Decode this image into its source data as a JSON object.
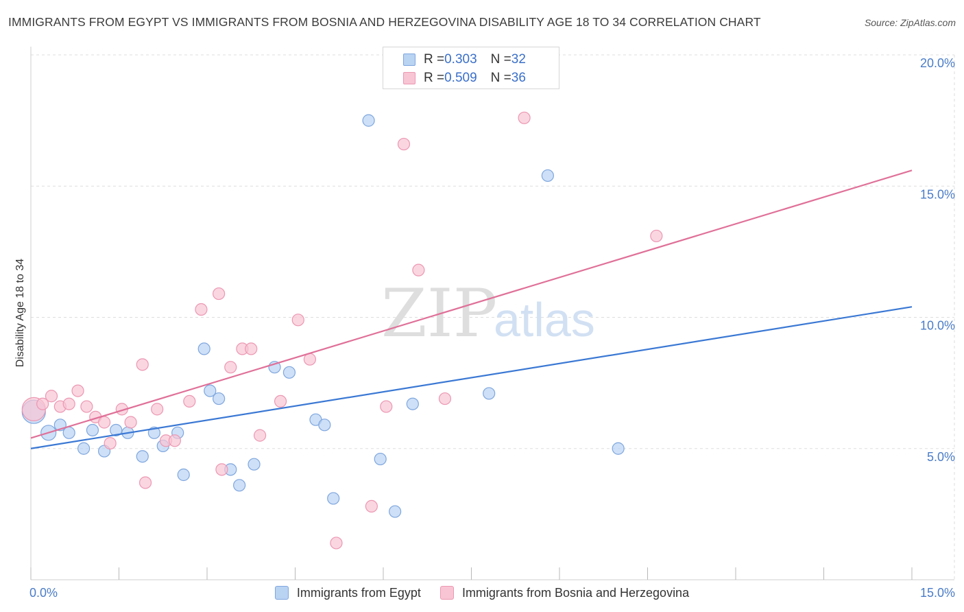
{
  "title": "IMMIGRANTS FROM EGYPT VS IMMIGRANTS FROM BOSNIA AND HERZEGOVINA DISABILITY AGE 18 TO 34 CORRELATION CHART",
  "source": "Source: ZipAtlas.com",
  "watermark": {
    "zip": "ZIP",
    "atlas": "atlas"
  },
  "colors": {
    "egypt_fill": "#b9d3f3",
    "egypt_stroke": "#7ea6de",
    "egypt_line": "#3a78d4",
    "bosnia_fill": "#f8c5d4",
    "bosnia_stroke": "#ec97b2",
    "bosnia_line": "#e07098",
    "tick_text": "#4a7cc7",
    "grid": "#dddddd"
  },
  "legend": {
    "rows": [
      {
        "r_label": "R = ",
        "r_value": "0.303",
        "n_label": "N = ",
        "n_value": "32"
      },
      {
        "r_label": "R = ",
        "r_value": "0.509",
        "n_label": "N = ",
        "n_value": "36"
      }
    ],
    "series_names": [
      "Immigrants from Egypt",
      "Immigrants from Bosnia and Herzegovina"
    ]
  },
  "chart_data": {
    "type": "scatter",
    "title": "IMMIGRANTS FROM EGYPT VS IMMIGRANTS FROM BOSNIA AND HERZEGOVINA DISABILITY AGE 18 TO 34 CORRELATION CHART",
    "xlabel": "",
    "ylabel": "Disability Age 18 to 34",
    "xlim": [
      0,
      15
    ],
    "ylim": [
      0,
      20
    ],
    "x_tick_labels": [
      "0.0%",
      "15.0%"
    ],
    "y_ticks": [
      5,
      10,
      15,
      20
    ],
    "y_tick_labels": [
      "5.0%",
      "10.0%",
      "15.0%",
      "20.0%"
    ],
    "grid": true,
    "legend_position": "top-center",
    "series": [
      {
        "name": "Immigrants from Egypt",
        "r": 0.303,
        "n": 32,
        "trend": {
          "x": [
            0,
            15
          ],
          "y": [
            5.0,
            10.4
          ]
        },
        "points": [
          {
            "x": 0.05,
            "y": 6.4,
            "size": "large"
          },
          {
            "x": 0.3,
            "y": 5.6,
            "size": "medium"
          },
          {
            "x": 0.5,
            "y": 5.9
          },
          {
            "x": 0.65,
            "y": 5.6
          },
          {
            "x": 0.9,
            "y": 5.0
          },
          {
            "x": 1.05,
            "y": 5.7
          },
          {
            "x": 1.25,
            "y": 4.9
          },
          {
            "x": 1.45,
            "y": 5.7
          },
          {
            "x": 1.65,
            "y": 5.6
          },
          {
            "x": 1.9,
            "y": 4.7
          },
          {
            "x": 2.1,
            "y": 5.6
          },
          {
            "x": 2.25,
            "y": 5.1
          },
          {
            "x": 2.5,
            "y": 5.6
          },
          {
            "x": 2.6,
            "y": 4.0
          },
          {
            "x": 2.95,
            "y": 8.8
          },
          {
            "x": 3.05,
            "y": 7.2
          },
          {
            "x": 3.2,
            "y": 6.9
          },
          {
            "x": 3.4,
            "y": 4.2
          },
          {
            "x": 3.55,
            "y": 3.6
          },
          {
            "x": 3.8,
            "y": 4.4
          },
          {
            "x": 4.15,
            "y": 8.1
          },
          {
            "x": 4.4,
            "y": 7.9
          },
          {
            "x": 4.85,
            "y": 6.1
          },
          {
            "x": 5.0,
            "y": 5.9
          },
          {
            "x": 5.15,
            "y": 3.1
          },
          {
            "x": 5.75,
            "y": 17.5
          },
          {
            "x": 5.95,
            "y": 4.6
          },
          {
            "x": 6.2,
            "y": 2.6
          },
          {
            "x": 6.5,
            "y": 6.7
          },
          {
            "x": 7.8,
            "y": 7.1
          },
          {
            "x": 8.8,
            "y": 15.4
          },
          {
            "x": 10.0,
            "y": 5.0
          }
        ]
      },
      {
        "name": "Immigrants from Bosnia and Herzegovina",
        "r": 0.509,
        "n": 36,
        "trend": {
          "x": [
            0,
            15
          ],
          "y": [
            5.4,
            15.6
          ]
        },
        "points": [
          {
            "x": 0.05,
            "y": 6.5,
            "size": "large"
          },
          {
            "x": 0.2,
            "y": 6.7
          },
          {
            "x": 0.35,
            "y": 7.0
          },
          {
            "x": 0.5,
            "y": 6.6
          },
          {
            "x": 0.65,
            "y": 6.7
          },
          {
            "x": 0.8,
            "y": 7.2
          },
          {
            "x": 0.95,
            "y": 6.6
          },
          {
            "x": 1.1,
            "y": 6.2
          },
          {
            "x": 1.25,
            "y": 6.0
          },
          {
            "x": 1.35,
            "y": 5.2
          },
          {
            "x": 1.55,
            "y": 6.5
          },
          {
            "x": 1.7,
            "y": 6.0
          },
          {
            "x": 1.9,
            "y": 8.2
          },
          {
            "x": 1.95,
            "y": 3.7
          },
          {
            "x": 2.15,
            "y": 6.5
          },
          {
            "x": 2.3,
            "y": 5.3
          },
          {
            "x": 2.45,
            "y": 5.3
          },
          {
            "x": 2.7,
            "y": 6.8
          },
          {
            "x": 2.9,
            "y": 10.3
          },
          {
            "x": 3.2,
            "y": 10.9
          },
          {
            "x": 3.25,
            "y": 4.2
          },
          {
            "x": 3.4,
            "y": 8.1
          },
          {
            "x": 3.6,
            "y": 8.8
          },
          {
            "x": 3.75,
            "y": 8.8
          },
          {
            "x": 3.9,
            "y": 5.5
          },
          {
            "x": 4.25,
            "y": 6.8
          },
          {
            "x": 4.55,
            "y": 9.9
          },
          {
            "x": 4.75,
            "y": 8.4
          },
          {
            "x": 5.2,
            "y": 1.4
          },
          {
            "x": 5.8,
            "y": 2.8
          },
          {
            "x": 6.05,
            "y": 6.6
          },
          {
            "x": 6.35,
            "y": 16.6
          },
          {
            "x": 6.6,
            "y": 11.8
          },
          {
            "x": 7.05,
            "y": 6.9
          },
          {
            "x": 8.4,
            "y": 17.6
          },
          {
            "x": 10.65,
            "y": 13.1
          }
        ]
      }
    ]
  }
}
